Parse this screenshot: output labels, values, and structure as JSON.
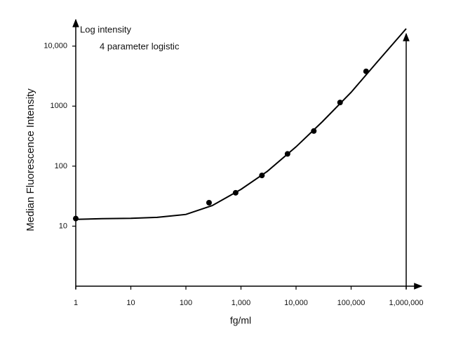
{
  "chart_data": {
    "type": "scatter",
    "title": "Log intensity",
    "subtitle": "4 parameter logistic",
    "xlabel": "fg/ml",
    "ylabel": "Median Fluorescence Intensity",
    "log_x": true,
    "log_y": true,
    "grid": false,
    "xlim": [
      1,
      1000000
    ],
    "ylim": [
      1,
      20000
    ],
    "xticks": [
      1,
      10,
      100,
      {
        "value": 1000,
        "label": "1,000"
      },
      {
        "value": 10000,
        "label": "10,000"
      },
      {
        "value": 100000,
        "label": "100,000"
      },
      {
        "value": 1000000,
        "label": "1,000,000"
      }
    ],
    "yticks": [
      10,
      100,
      1000,
      {
        "value": 10000,
        "label": "10,000"
      }
    ],
    "series": [
      {
        "type": "scatter",
        "color": "#000000",
        "x": [
          1,
          263,
          800,
          2400,
          7000,
          21000,
          63000,
          187000
        ],
        "values": [
          13.4,
          24.6,
          36,
          70,
          160,
          385,
          1150,
          3800
        ]
      },
      {
        "type": "line",
        "color": "#000000",
        "x": [
          1,
          3,
          10,
          30,
          100,
          300,
          1000,
          3000,
          10000,
          30000,
          100000,
          300000,
          1000000
        ],
        "values": [
          13,
          13.3,
          13.5,
          14,
          15.7,
          22,
          41,
          82,
          210,
          550,
          1700,
          5500,
          19500
        ]
      }
    ]
  }
}
